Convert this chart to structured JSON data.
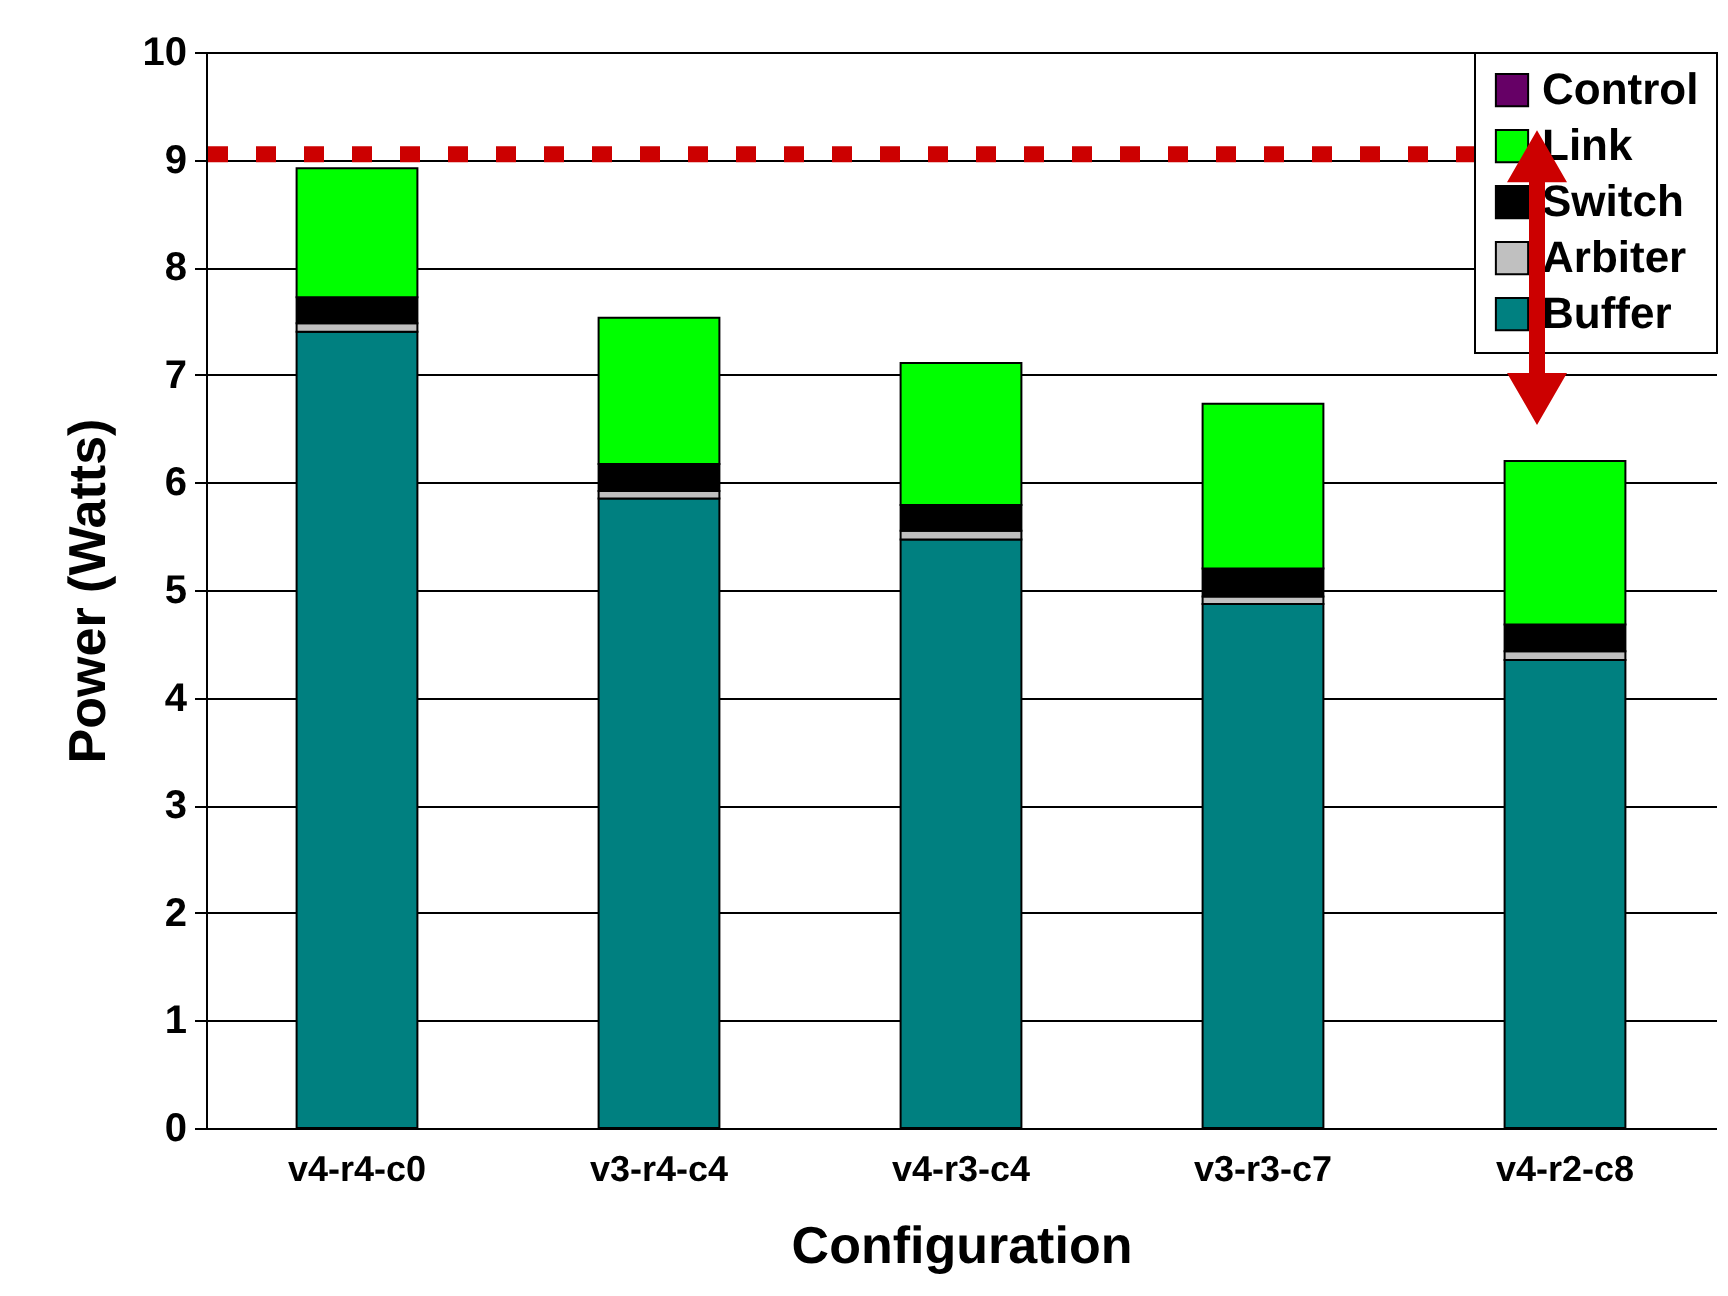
{
  "chart_data": {
    "type": "bar",
    "stacked": true,
    "xlabel": "Configuration",
    "ylabel": "Power (Watts)",
    "categories": [
      "v4-r4-c0",
      "v3-r4-c4",
      "v4-r3-c4",
      "v3-r3-c7",
      "v4-r2-c8"
    ],
    "series": [
      {
        "name": "Buffer",
        "color": "#008080",
        "values": [
          7.4,
          5.85,
          5.47,
          4.87,
          4.35
        ]
      },
      {
        "name": "Arbiter",
        "color": "#c0c0c0",
        "values": [
          0.08,
          0.07,
          0.08,
          0.07,
          0.08
        ]
      },
      {
        "name": "Switch",
        "color": "#000000",
        "values": [
          0.24,
          0.25,
          0.24,
          0.26,
          0.25
        ]
      },
      {
        "name": "Link",
        "color": "#00ff00",
        "values": [
          1.2,
          1.36,
          1.32,
          1.53,
          1.52
        ]
      },
      {
        "name": "Control",
        "color": "#660066",
        "values": [
          0,
          0,
          0,
          0,
          0
        ]
      }
    ],
    "ylim": [
      0,
      10
    ],
    "yticks": [
      0,
      1,
      2,
      3,
      4,
      5,
      6,
      7,
      8,
      9,
      10
    ],
    "grid": "y",
    "legend": "top right",
    "ref_lines": [
      {
        "axis": "y",
        "value": 9.05,
        "color": "#cc0000",
        "line_style": "dotted"
      }
    ]
  }
}
